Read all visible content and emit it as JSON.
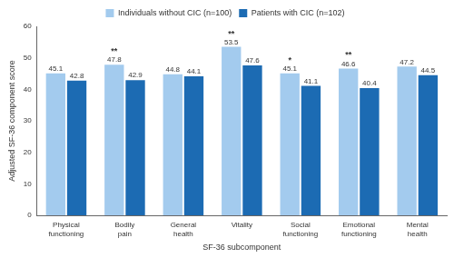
{
  "chart_data": {
    "type": "bar",
    "categories": [
      "Physical functioning",
      "Bodily pain",
      "General health",
      "Vitality",
      "Social functioning",
      "Emotional functioning",
      "Mental health"
    ],
    "series": [
      {
        "name": "Individuals without CIC (n=100)",
        "color": "#a3cbee",
        "values": [
          45.1,
          47.8,
          44.8,
          53.5,
          45.1,
          46.6,
          47.2
        ]
      },
      {
        "name": "Patients with CIC (n=102)",
        "color": "#1c6bb3",
        "values": [
          42.8,
          42.9,
          44.1,
          47.6,
          41.1,
          40.4,
          44.5
        ]
      }
    ],
    "x_label": "SF-36 subcomponent",
    "y_label": "Adjusted SF-36 component score",
    "ylim": [
      0,
      60
    ],
    "yticks": [
      0,
      10,
      20,
      30,
      40,
      50,
      60
    ],
    "grid": false,
    "legend": "top",
    "data_labels": true,
    "annotations": [
      {
        "category": "Bodily pain",
        "text": "**"
      },
      {
        "category": "Vitality",
        "text": "**"
      },
      {
        "category": "Social functioning",
        "text": "*"
      },
      {
        "category": "Emotional functioning",
        "text": "**"
      }
    ]
  }
}
